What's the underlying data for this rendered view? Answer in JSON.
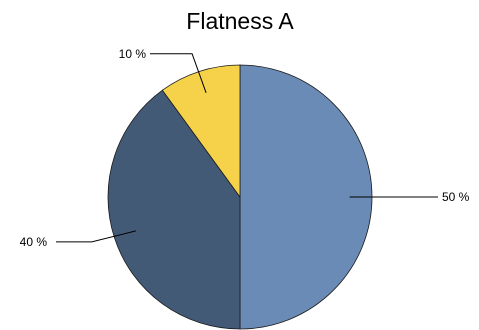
{
  "chart_data": {
    "type": "pie",
    "title": "Flatness A",
    "slices": [
      {
        "label": "50 %",
        "value": 50,
        "color": "#6a8bb5"
      },
      {
        "label": "40 %",
        "value": 40,
        "color": "#435a77"
      },
      {
        "label": "10 %",
        "value": 10,
        "color": "#f5d24a"
      }
    ],
    "start_angle_deg": 0,
    "direction": "clockwise",
    "legend": "none"
  }
}
